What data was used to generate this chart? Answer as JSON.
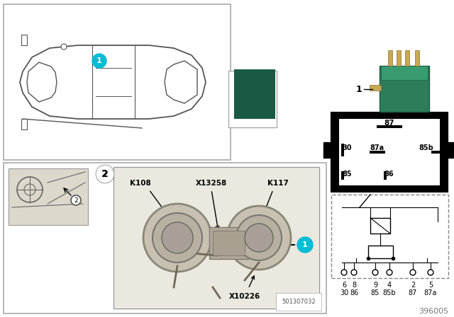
{
  "bg_color": "#ffffff",
  "part_number": "396005",
  "relay_green_color": "#2a7a5a",
  "dark_teal": "#1a5a45",
  "teal_label_bg": "#00bcd4",
  "car_outline_color": "#555555",
  "box_border_color": "#aaaaaa",
  "black": "#000000",
  "white": "#ffffff",
  "gray_light": "#e8e8e8",
  "gray_med": "#cccccc",
  "label1_text": "1",
  "label2_text": "2",
  "k108": "K108",
  "x13258": "X13258",
  "k117": "K117",
  "x10226": "X10226",
  "part_ref": "501307032",
  "ref_num": "396005",
  "relay_pins_top": [
    "87"
  ],
  "relay_pins_mid": [
    "30",
    "87a",
    "85b"
  ],
  "relay_pins_bot": [
    "85",
    "86"
  ],
  "schematic_pins_row1": [
    "6",
    "8",
    "9",
    "4",
    "2",
    "5"
  ],
  "schematic_pins_row2": [
    "30",
    "86",
    "85",
    "85b",
    "87",
    "87a"
  ]
}
